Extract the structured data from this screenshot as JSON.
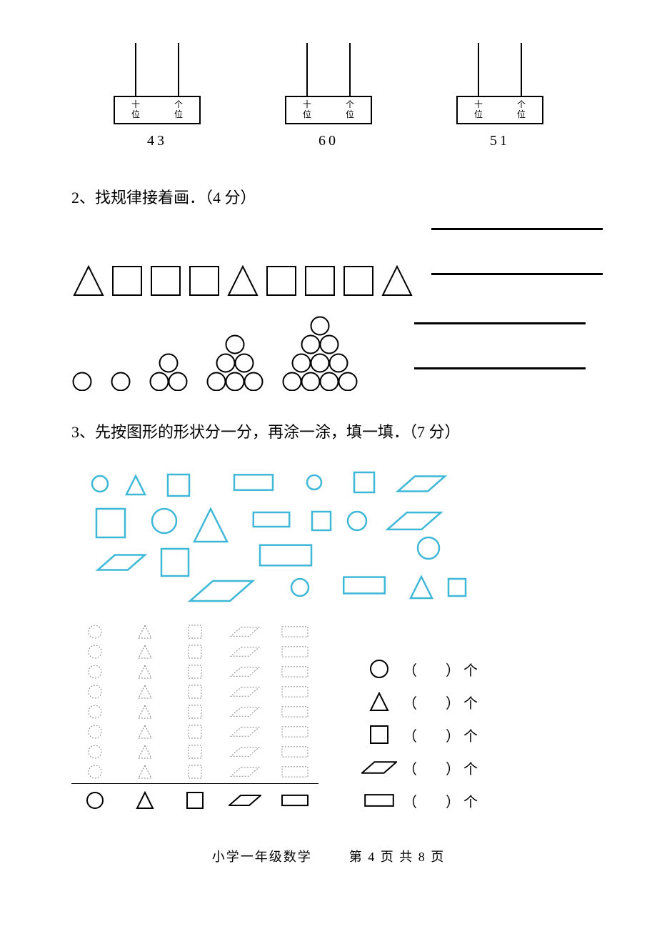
{
  "abacus": {
    "tens_label": "十位",
    "ones_label": "个位",
    "items": [
      {
        "number": "43"
      },
      {
        "number": "60"
      },
      {
        "number": "51"
      }
    ]
  },
  "q2": {
    "text": "2、找规律接着画．（4 分）",
    "row1_shapes": [
      "triangle",
      "square",
      "square",
      "square",
      "triangle",
      "square",
      "square",
      "square",
      "triangle"
    ],
    "row2_groups": [
      1,
      2,
      3,
      6,
      10
    ]
  },
  "q3": {
    "text": "3、先按图形的形状分一分，再涂一涂，填一填．（7 分）",
    "shape_color": "#3fb8d8",
    "dotted_color": "#888888",
    "grid_columns": [
      {
        "shape": "circle",
        "count": 8
      },
      {
        "shape": "triangle",
        "count": 8
      },
      {
        "shape": "square",
        "count": 8
      },
      {
        "shape": "parallelogram",
        "count": 8
      },
      {
        "shape": "rectangle",
        "count": 8
      }
    ],
    "count_labels": [
      {
        "shape": "circle"
      },
      {
        "shape": "triangle"
      },
      {
        "shape": "square"
      },
      {
        "shape": "parallelogram"
      },
      {
        "shape": "rectangle"
      }
    ],
    "blank_open": "（",
    "blank_close": "）",
    "unit": "个"
  },
  "footer": {
    "subject": "小学一年级数学",
    "page": "第 4 页 共 8 页"
  }
}
